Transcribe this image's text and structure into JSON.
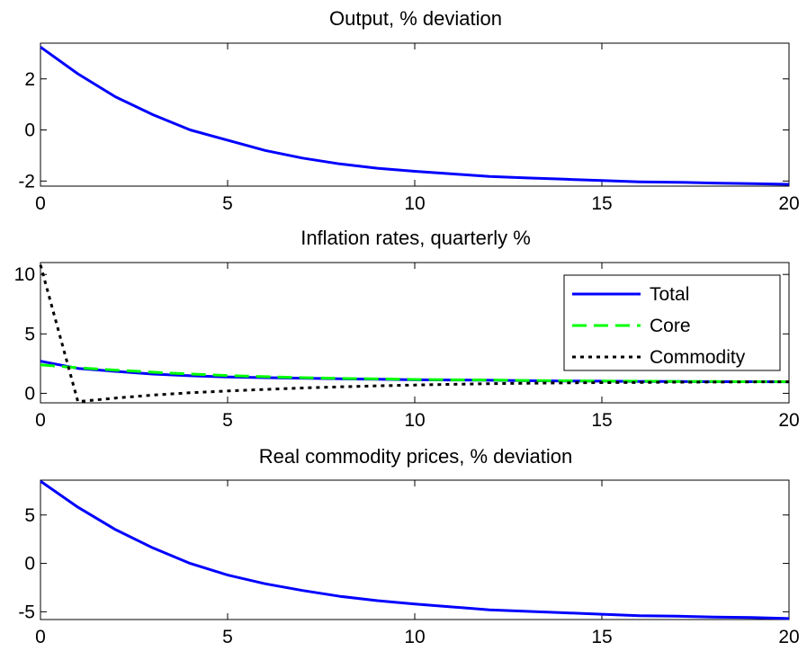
{
  "chart_data": [
    {
      "type": "line",
      "title": "Output, % deviation",
      "xlabel": "",
      "ylabel": "",
      "xlim": [
        0,
        20
      ],
      "ylim": [
        -2.2,
        3.4
      ],
      "xticks": [
        0,
        5,
        10,
        15,
        20
      ],
      "yticks": [
        -2,
        0,
        2
      ],
      "grid": false,
      "series": [
        {
          "color": "#0000ff",
          "style": "solid",
          "x": [
            0,
            1,
            2,
            3,
            4,
            5,
            6,
            7,
            8,
            9,
            10,
            11,
            12,
            13,
            14,
            15,
            16,
            17,
            18,
            19,
            20
          ],
          "y": [
            3.25,
            2.2,
            1.3,
            0.6,
            0.0,
            -0.4,
            -0.8,
            -1.1,
            -1.33,
            -1.5,
            -1.62,
            -1.72,
            -1.82,
            -1.88,
            -1.93,
            -1.98,
            -2.03,
            -2.05,
            -2.08,
            -2.1,
            -2.13
          ]
        }
      ]
    },
    {
      "type": "line",
      "title": "Inflation rates, quarterly %",
      "xlabel": "",
      "ylabel": "",
      "xlim": [
        0,
        20
      ],
      "ylim": [
        -0.8,
        11.0
      ],
      "xticks": [
        0,
        5,
        10,
        15,
        20
      ],
      "yticks": [
        0,
        5,
        10
      ],
      "grid": false,
      "legend": "top-right",
      "series": [
        {
          "name": "Total",
          "color": "#0000ff",
          "style": "solid",
          "x": [
            0,
            1,
            2,
            3,
            4,
            5,
            6,
            7,
            8,
            9,
            10,
            11,
            12,
            13,
            14,
            15,
            16,
            17,
            18,
            19,
            20
          ],
          "y": [
            2.7,
            2.1,
            1.85,
            1.62,
            1.48,
            1.38,
            1.32,
            1.27,
            1.22,
            1.18,
            1.14,
            1.12,
            1.1,
            1.06,
            1.04,
            1.02,
            1.0,
            0.99,
            0.98,
            0.98,
            0.97
          ]
        },
        {
          "name": "Core",
          "color": "#00ff00",
          "style": "dashed",
          "x": [
            0,
            1,
            2,
            3,
            4,
            5,
            6,
            7,
            8,
            9,
            10,
            11,
            12,
            13,
            14,
            15,
            16,
            17,
            18,
            19,
            20
          ],
          "y": [
            2.4,
            2.15,
            1.95,
            1.78,
            1.62,
            1.5,
            1.4,
            1.32,
            1.26,
            1.21,
            1.17,
            1.14,
            1.12,
            1.08,
            1.05,
            1.03,
            1.02,
            1.0,
            0.99,
            0.98,
            0.98
          ]
        },
        {
          "name": "Commodity",
          "color": "#000000",
          "style": "dotted",
          "x": [
            0,
            1,
            2,
            3,
            4,
            5,
            6,
            7,
            8,
            9,
            10,
            11,
            12,
            13,
            14,
            15,
            16,
            17,
            18,
            19,
            20
          ],
          "y": [
            10.8,
            -0.7,
            -0.4,
            -0.15,
            0.05,
            0.2,
            0.33,
            0.45,
            0.55,
            0.63,
            0.7,
            0.76,
            0.81,
            0.85,
            0.88,
            0.9,
            0.92,
            0.94,
            0.95,
            0.96,
            0.97
          ]
        }
      ]
    },
    {
      "type": "line",
      "title": "Real commodity prices, % deviation",
      "xlabel": "",
      "ylabel": "",
      "xlim": [
        0,
        20
      ],
      "ylim": [
        -5.8,
        8.6
      ],
      "xticks": [
        0,
        5,
        10,
        15,
        20
      ],
      "yticks": [
        -5,
        0,
        5
      ],
      "grid": false,
      "series": [
        {
          "color": "#0000ff",
          "style": "solid",
          "x": [
            0,
            1,
            2,
            3,
            4,
            5,
            6,
            7,
            8,
            9,
            10,
            11,
            12,
            13,
            14,
            15,
            16,
            17,
            18,
            19,
            20
          ],
          "y": [
            8.5,
            5.8,
            3.5,
            1.6,
            0.0,
            -1.2,
            -2.1,
            -2.8,
            -3.4,
            -3.85,
            -4.2,
            -4.5,
            -4.8,
            -4.95,
            -5.1,
            -5.25,
            -5.4,
            -5.45,
            -5.55,
            -5.6,
            -5.7
          ]
        }
      ]
    }
  ]
}
